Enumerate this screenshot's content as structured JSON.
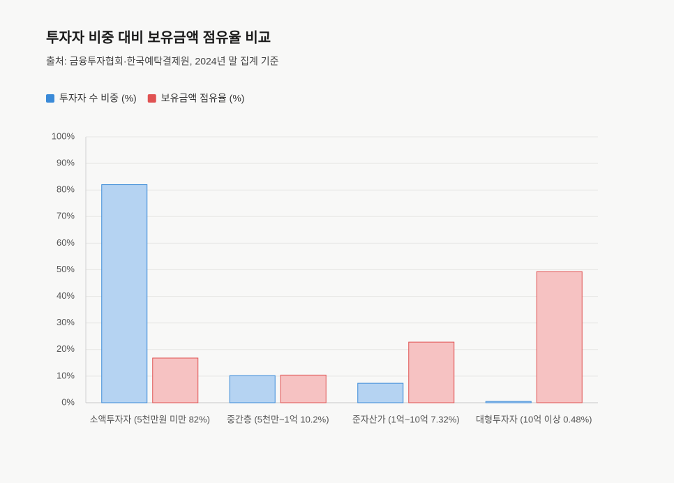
{
  "chart_data": {
    "type": "bar",
    "title": "투자자 비중 대비 보유금액 점유율 비교",
    "subtitle": "출처: 금융투자협회·한국예탁결제원, 2024년 말 집계 기준",
    "categories": [
      "소액투자자 (5천만원 미만 82%)",
      "중간층 (5천만~1억 10.2%)",
      "준자산가 (1억~10억 7.32%)",
      "대형투자자 (10억 이상 0.48%)"
    ],
    "series": [
      {
        "name": "투자자 수 비중 (%)",
        "color": "#3a8ad8",
        "fill": "#b5d3f2",
        "values": [
          82,
          10.2,
          7.32,
          0.48
        ]
      },
      {
        "name": "보유금액 점유율 (%)",
        "color": "#e05252",
        "fill": "#f6c2c2",
        "values": [
          16.8,
          10.4,
          22.8,
          49.3
        ]
      }
    ],
    "ylim": [
      0,
      100
    ],
    "yticks": [
      {
        "value": 0,
        "label": "0%"
      },
      {
        "value": 10,
        "label": "10%"
      },
      {
        "value": 20,
        "label": "20%"
      },
      {
        "value": 30,
        "label": "30%"
      },
      {
        "value": 40,
        "label": "40%"
      },
      {
        "value": 50,
        "label": "50%"
      },
      {
        "value": 60,
        "label": "60%"
      },
      {
        "value": 70,
        "label": "70%"
      },
      {
        "value": 80,
        "label": "80%"
      },
      {
        "value": 90,
        "label": "90%"
      },
      {
        "value": 100,
        "label": "100%"
      }
    ],
    "grid": true,
    "legend": "top-left"
  }
}
